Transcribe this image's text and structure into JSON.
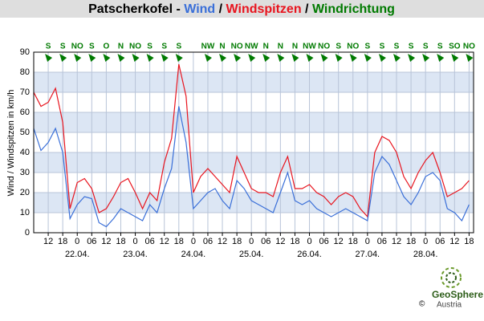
{
  "chart_data": {
    "type": "line",
    "title": "Patscherkofel - ",
    "title_separator": " / ",
    "direction_title": "Windrichtung",
    "direction_color": "#007a00",
    "y_label": "Wind / Windspitzen in km/h",
    "logo_name": "GeoSphere",
    "logo_sub": "Austria",
    "logo_copyright": "©",
    "categories": [
      null,
      null,
      "12",
      null,
      "18",
      null,
      "0",
      null,
      "06",
      null,
      "12",
      null,
      "18",
      null,
      "0",
      null,
      "06",
      null,
      "12",
      null,
      "18",
      null,
      "0",
      null,
      "06",
      null,
      "12",
      null,
      "18",
      null,
      "0",
      null,
      "06",
      null,
      "12",
      null,
      "18",
      null,
      "0",
      null,
      "06",
      null,
      "12",
      null,
      "18",
      null,
      "0",
      null,
      "06",
      null,
      "12",
      null,
      "18",
      null,
      "0",
      null,
      "06",
      null,
      "12",
      null,
      "18"
    ],
    "days": [
      "22.04.",
      "23.04.",
      "24.04.",
      "25.04.",
      "26.04.",
      "27.04.",
      "28.04."
    ],
    "directions": [
      null,
      null,
      "S",
      null,
      "S",
      null,
      "NO",
      null,
      "S",
      null,
      "O",
      null,
      "N",
      null,
      "NO",
      null,
      "S",
      null,
      "S",
      null,
      "S",
      null,
      null,
      null,
      "NW",
      null,
      "N",
      null,
      "NO",
      null,
      "NW",
      null,
      "N",
      null,
      "N",
      null,
      "N",
      null,
      "NW",
      null,
      "NO",
      null,
      "S",
      null,
      "NO",
      null,
      "S",
      null,
      "S",
      null,
      "S",
      null,
      "S",
      null,
      "S",
      null,
      "S",
      null,
      "SO",
      null,
      "NO"
    ],
    "series": [
      {
        "name": "Wind",
        "color": "#3a6fd8",
        "values": [
          52,
          41,
          45,
          52,
          40,
          7,
          14,
          18,
          17,
          5,
          3,
          7,
          12,
          10,
          8,
          6,
          14,
          10,
          22,
          32,
          63,
          45,
          12,
          16,
          20,
          22,
          16,
          12,
          26,
          22,
          16,
          14,
          12,
          10,
          20,
          30,
          16,
          14,
          16,
          12,
          10,
          8,
          10,
          12,
          10,
          8,
          6,
          30,
          38,
          34,
          26,
          18,
          14,
          20,
          28,
          30,
          26,
          12,
          10,
          6,
          14
        ]
      },
      {
        "name": "Windspitzen",
        "color": "#e8141e",
        "values": [
          70,
          63,
          65,
          72,
          55,
          12,
          25,
          27,
          22,
          10,
          12,
          18,
          25,
          27,
          20,
          12,
          20,
          16,
          35,
          47,
          84,
          68,
          20,
          28,
          32,
          28,
          24,
          20,
          38,
          30,
          22,
          20,
          20,
          18,
          30,
          38,
          22,
          22,
          24,
          20,
          18,
          14,
          18,
          20,
          18,
          12,
          8,
          40,
          48,
          46,
          40,
          28,
          22,
          30,
          36,
          40,
          30,
          18,
          20,
          22,
          26
        ]
      }
    ],
    "ylim": [
      0,
      90
    ],
    "yticks": [
      0,
      10,
      20,
      30,
      40,
      50,
      60,
      70,
      80,
      90
    ],
    "grid": true
  }
}
